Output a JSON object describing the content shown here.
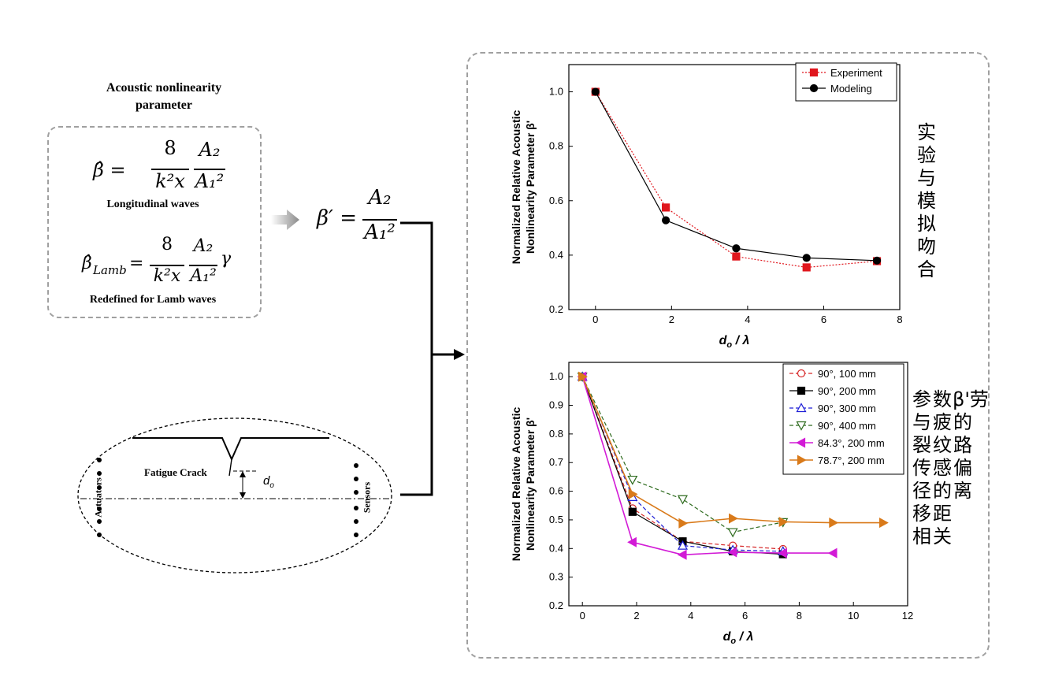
{
  "left_panel": {
    "title": "Acoustic nonlinearity parameter",
    "formula_longitudinal": {
      "lhs": "β̂ =",
      "numerator": "8",
      "denominator": "k²x",
      "frac2_num": "A₂",
      "frac2_den": "A₁²",
      "caption": "Longitudinal waves"
    },
    "formula_lamb": {
      "lhs": "β̂",
      "lhs_sub": "Lamb",
      "eq": "=",
      "numerator": "8",
      "denominator": "k²x",
      "frac2_num": "A₂",
      "frac2_den": "A₁²",
      "suffix": "γ",
      "caption": "Redefined for Lamb waves"
    },
    "relative_formula": {
      "lhs": "β′ =",
      "num": "A₂",
      "den": "A₁²"
    }
  },
  "schematic": {
    "crack_label": "Fatigue Crack",
    "distance_label": "d",
    "distance_sub": "o",
    "actuators_label": "Actuators",
    "sensors_label": "Sensors"
  },
  "annotations": {
    "top_chinese": "实验与模拟吻合",
    "bottom_chinese_col1": "参与裂传径移相",
    "bottom_chinese_col2": "数疲纹感的距关",
    "bottom_chinese_col3": "β'劳的路偏离"
  },
  "colors": {
    "experiment": "#e0161d",
    "modeling": "#000000",
    "s90_100": "#d62728",
    "s90_200": "#000000",
    "s90_300": "#1f1fd6",
    "s90_400": "#2e6b1e",
    "s843_200": "#d21bd6",
    "s787_200": "#d97a1a",
    "dash_border": "#a0a0a0"
  },
  "chart_data": [
    {
      "type": "line",
      "xlabel": "d_o / λ",
      "ylabel": "Normalized Relative Acoustic Nonlinearity Parameter β'",
      "xlim": [
        -0.7,
        8
      ],
      "ylim": [
        0.2,
        1.1
      ],
      "xticks": [
        0,
        2,
        4,
        6,
        8
      ],
      "yticks": [
        0.2,
        0.4,
        0.6,
        0.8,
        1.0
      ],
      "legend_position": "top-right",
      "series": [
        {
          "name": "Experiment",
          "x": [
            0,
            1.85,
            3.7,
            5.55,
            7.4
          ],
          "y": [
            1.0,
            0.575,
            0.395,
            0.355,
            0.378
          ]
        },
        {
          "name": "Modeling",
          "x": [
            0,
            1.85,
            3.7,
            5.55,
            7.4
          ],
          "y": [
            1.0,
            0.528,
            0.425,
            0.39,
            0.38
          ]
        }
      ]
    },
    {
      "type": "line",
      "xlabel": "d_o / λ",
      "ylabel": "Normalized Relative Acoustic Nonlinearity Parameter β'",
      "xlim": [
        -0.5,
        12
      ],
      "ylim": [
        0.2,
        1.05
      ],
      "xticks": [
        0,
        2,
        4,
        6,
        8,
        10,
        12
      ],
      "yticks": [
        0.2,
        0.3,
        0.4,
        0.5,
        0.6,
        0.7,
        0.8,
        0.9,
        1.0
      ],
      "legend_position": "top-right",
      "series": [
        {
          "name": "90°, 100 mm",
          "x": [
            0,
            1.85,
            3.7,
            5.55,
            7.4
          ],
          "y": [
            1.0,
            0.54,
            0.425,
            0.41,
            0.398
          ]
        },
        {
          "name": "90°, 200 mm",
          "x": [
            0,
            1.85,
            3.7,
            5.55,
            7.4
          ],
          "y": [
            1.0,
            0.528,
            0.425,
            0.39,
            0.38
          ]
        },
        {
          "name": "90°, 300 mm",
          "x": [
            0,
            1.85,
            3.7,
            5.55,
            7.4
          ],
          "y": [
            1.0,
            0.58,
            0.41,
            0.395,
            0.39
          ]
        },
        {
          "name": "90°, 400 mm",
          "x": [
            0,
            1.85,
            3.7,
            5.55,
            7.4
          ],
          "y": [
            1.0,
            0.64,
            0.572,
            0.457,
            0.492
          ]
        },
        {
          "name": "84.3°, 200 mm",
          "x": [
            0,
            1.85,
            3.7,
            5.55,
            7.4,
            9.25
          ],
          "y": [
            1.0,
            0.422,
            0.378,
            0.387,
            0.384,
            0.384
          ]
        },
        {
          "name": "78.7°, 200 mm",
          "x": [
            0,
            1.85,
            3.7,
            5.55,
            7.4,
            9.25,
            11.1
          ],
          "y": [
            1.0,
            0.59,
            0.488,
            0.505,
            0.493,
            0.49,
            0.49
          ]
        }
      ]
    }
  ]
}
